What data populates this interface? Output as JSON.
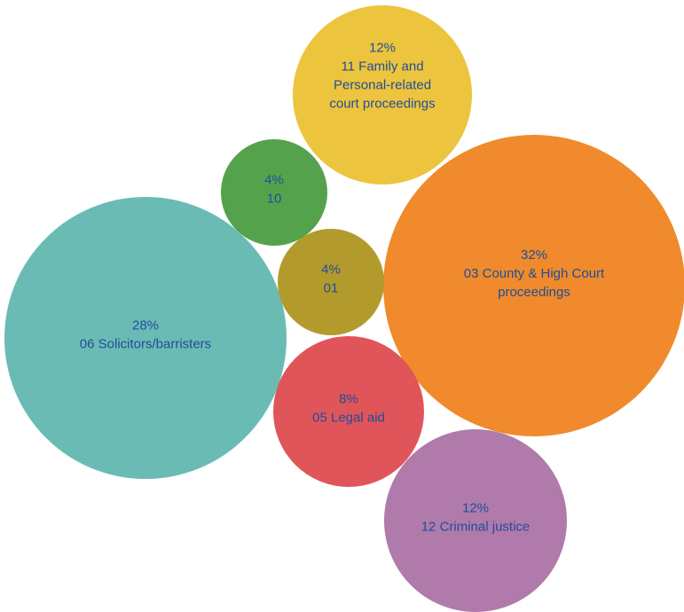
{
  "chart_data": {
    "type": "bubble",
    "unit": "%",
    "items": [
      {
        "category": "03 County & High Court proceedings",
        "label_lines": [
          "03 County & High Court",
          "proceedings"
        ],
        "value": 32,
        "value_label": "32%",
        "color": "#F08A2C"
      },
      {
        "category": "06 Solicitors/barristers",
        "label_lines": [
          "06 Solicitors/barristers"
        ],
        "value": 28,
        "value_label": "28%",
        "color": "#6BBBB5"
      },
      {
        "category": "11 Family and Personal-related court proceedings",
        "label_lines": [
          "11 Family and",
          "Personal-related",
          "court proceedings"
        ],
        "value": 12,
        "value_label": "12%",
        "color": "#EDC43E"
      },
      {
        "category": "12 Criminal justice",
        "label_lines": [
          "12 Criminal justice"
        ],
        "value": 12,
        "value_label": "12%",
        "color": "#B07AAA"
      },
      {
        "category": "05 Legal aid",
        "label_lines": [
          "05 Legal aid"
        ],
        "value": 8,
        "value_label": "8%",
        "color": "#E0555A"
      },
      {
        "category": "10",
        "label_lines": [
          "10"
        ],
        "value": 4,
        "value_label": "4%",
        "color": "#55A24C"
      },
      {
        "category": "01",
        "label_lines": [
          "01"
        ],
        "value": 4,
        "value_label": "4%",
        "color": "#B39A2C"
      }
    ]
  }
}
